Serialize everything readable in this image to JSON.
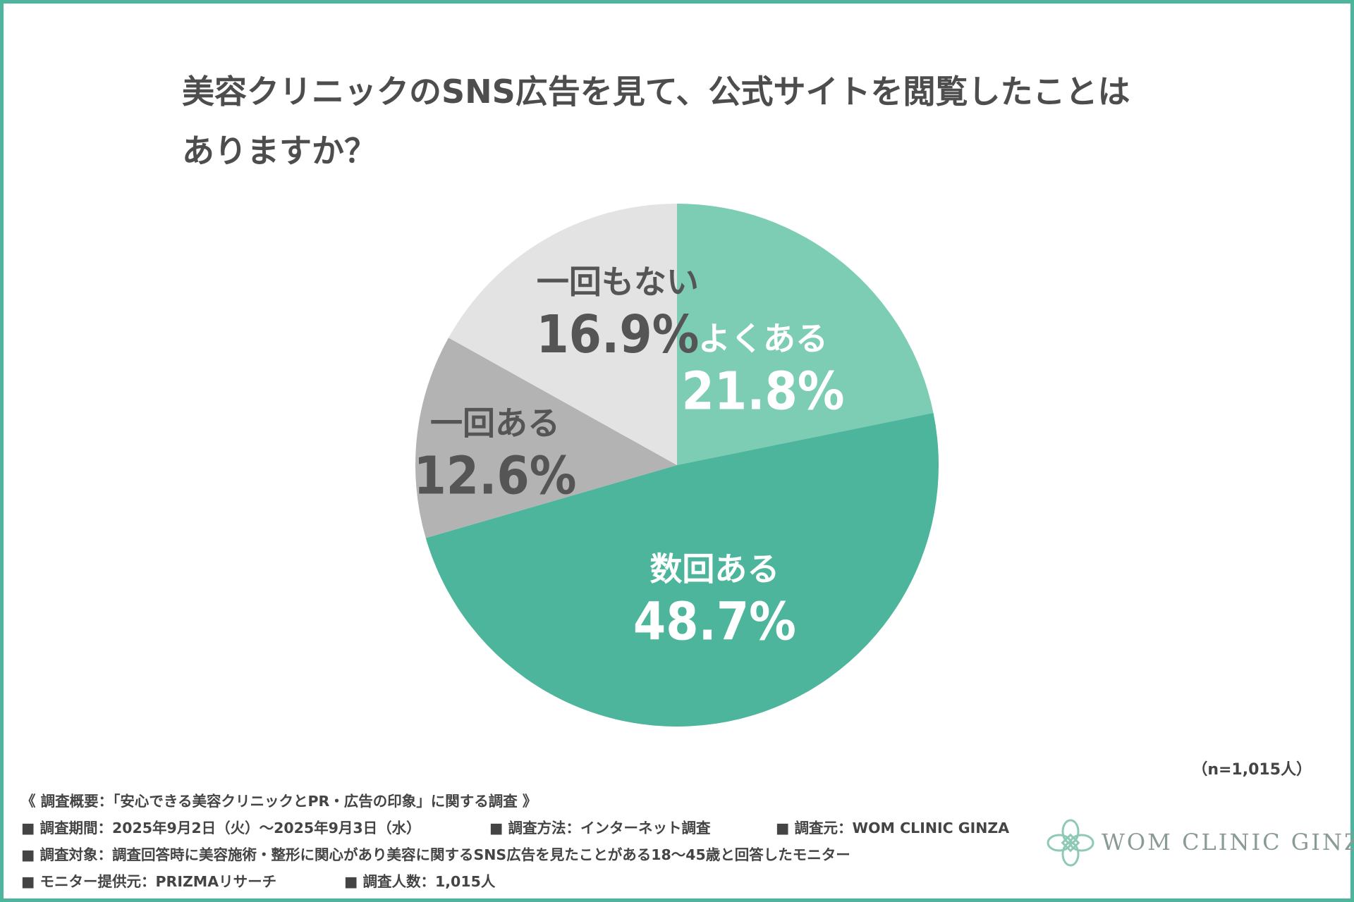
{
  "title": {
    "line1": "美容クリニックのSNS広告を見て、公式サイトを閲覧したことは",
    "line2": "ありますか？"
  },
  "chart_data": {
    "type": "pie",
    "title": "美容クリニックのSNS広告を見て、公式サイトを閲覧したことはありますか？",
    "slices": [
      {
        "label": "よくある",
        "value": 21.8,
        "display": "21.8%",
        "color": "#7dcdb5",
        "text_color": "#ffffff"
      },
      {
        "label": "数回ある",
        "value": 48.7,
        "display": "48.7%",
        "color": "#4db59b",
        "text_color": "#ffffff"
      },
      {
        "label": "一回ある",
        "value": 12.6,
        "display": "12.6%",
        "color": "#b3b3b3",
        "text_color": "#555555"
      },
      {
        "label": "一回もない",
        "value": 16.9,
        "display": "16.9%",
        "color": "#e3e3e3",
        "text_color": "#555555"
      }
    ],
    "start": "12 o'clock",
    "direction": "clockwise"
  },
  "sample_note": "（n=1,015人）",
  "survey": {
    "overview": "《 調査概要：「安心できる美容クリニックとPR・広告の印象」に関する調査 》",
    "period": "■ 調査期間：2025年9月2日（火）～2025年9月3日（水）",
    "method": "■ 調査方法：インターネット調査",
    "source": "■ 調査元：WOM CLINIC GINZA",
    "target": "■ 調査対象：調査回答時に美容施術・整形に関心があり美容に関するSNS広告を見たことがある18～45歳と回答したモニター",
    "provider": "■ モニター提供元：PRIZMAリサーチ",
    "count": "■ 調査人数：1,015人"
  },
  "logo": {
    "text": "WOM CLINIC GINZA",
    "icon": "clover-flower-icon",
    "color": "#8ec9b6"
  }
}
